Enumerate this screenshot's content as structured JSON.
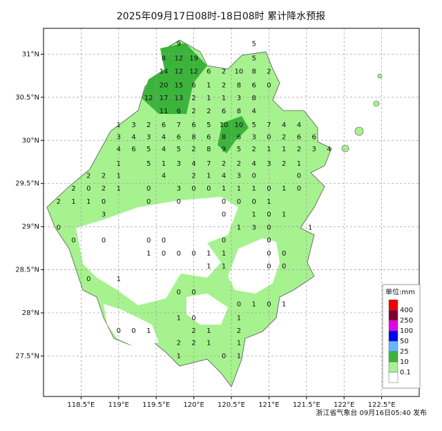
{
  "map": {
    "title": "2025年09月17日08时-18日08时 累计降水预报",
    "footer": "浙江省气象台 09月16日05:40 发布",
    "xlim": [
      118.0,
      123.0
    ],
    "ylim": [
      27.03,
      31.3
    ],
    "xticks": [
      {
        "value": 118.5,
        "label": "118.5°E"
      },
      {
        "value": 119,
        "label": "119°E"
      },
      {
        "value": 119.5,
        "label": "119.5°E"
      },
      {
        "value": 120,
        "label": "120°E"
      },
      {
        "value": 120.5,
        "label": "120.5°E"
      },
      {
        "value": 121,
        "label": "121°E"
      },
      {
        "value": 121.5,
        "label": "121.5°E"
      },
      {
        "value": 122,
        "label": "122°E"
      },
      {
        "value": 122.5,
        "label": "122.5°E"
      }
    ],
    "yticks": [
      {
        "value": 31,
        "label": "31°N"
      },
      {
        "value": 30.5,
        "label": "30.5°N"
      },
      {
        "value": 30,
        "label": "30°N"
      },
      {
        "value": 29.5,
        "label": "29.5°N"
      },
      {
        "value": 29,
        "label": "29°N"
      },
      {
        "value": 28.5,
        "label": "28.5°N"
      },
      {
        "value": 28,
        "label": "28°N"
      },
      {
        "value": 27.5,
        "label": "27.5°N"
      }
    ],
    "legend": {
      "title": "单位:mm",
      "levels": [
        {
          "label": "400",
          "color": "#ee0000"
        },
        {
          "label": "250",
          "color": "#800033"
        },
        {
          "label": "100",
          "color": "#e600e6"
        },
        {
          "label": "50",
          "color": "#0000ee"
        },
        {
          "label": "25",
          "color": "#61b8ff"
        },
        {
          "label": "10",
          "color": "#3cb43c"
        },
        {
          "label": "0.1",
          "color": "#a6f28f"
        },
        {
          "label": null,
          "color": "#ffffff"
        }
      ]
    },
    "stations": [
      {
        "lat": 31.12,
        "lon": [
          119.8,
          120.8
        ],
        "values": [
          9,
          5
        ]
      },
      {
        "lat": 30.95,
        "lon": [
          119.6,
          119.8,
          120.0,
          120.8
        ],
        "values": [
          8,
          12,
          19,
          5
        ]
      },
      {
        "lat": 30.8,
        "lon": [
          119.6,
          119.8,
          120.0,
          120.2,
          120.4,
          120.6,
          120.8,
          121.0
        ],
        "values": [
          14,
          12,
          12,
          6,
          2,
          10,
          8,
          2
        ]
      },
      {
        "lat": 30.64,
        "lon": [
          119.6,
          119.8,
          120.0,
          120.2,
          120.4,
          120.6,
          120.8,
          121.0
        ],
        "values": [
          20,
          15,
          6,
          1,
          2,
          8,
          6,
          0
        ]
      },
      {
        "lat": 30.49,
        "lon": [
          119.4,
          119.6,
          119.8,
          120.0,
          120.2,
          120.4,
          120.6,
          120.8
        ],
        "values": [
          12,
          17,
          13,
          2,
          1,
          1,
          3,
          8
        ]
      },
      {
        "lat": 30.34,
        "lon": [
          119.6,
          119.8,
          120.0,
          120.2,
          120.4,
          120.6,
          120.8
        ],
        "values": [
          11,
          6,
          2,
          2,
          6,
          8,
          4
        ]
      },
      {
        "lat": 30.18,
        "lon": [
          119.0,
          119.2,
          119.4,
          119.6,
          119.8,
          120.0,
          120.2,
          120.4,
          120.6,
          120.8,
          121.0,
          121.2,
          121.4
        ],
        "values": [
          1,
          3,
          2,
          6,
          7,
          6,
          5,
          10,
          10,
          5,
          7,
          4,
          4
        ]
      },
      {
        "lat": 30.04,
        "lon": [
          119.0,
          119.2,
          119.4,
          119.6,
          119.8,
          120.0,
          120.2,
          120.4,
          120.6,
          120.8,
          121.0,
          121.2,
          121.4,
          121.6
        ],
        "values": [
          3,
          4,
          3,
          4,
          6,
          8,
          6,
          8,
          6,
          3,
          0,
          2,
          6,
          6
        ]
      },
      {
        "lat": 29.9,
        "lon": [
          119.0,
          119.2,
          119.4,
          119.6,
          119.8,
          120.0,
          120.2,
          120.4,
          120.6,
          120.8,
          121.0,
          121.2,
          121.4,
          121.6,
          121.8
        ],
        "values": [
          4,
          6,
          5,
          4,
          5,
          2,
          8,
          9,
          5,
          2,
          1,
          1,
          2,
          3,
          4
        ]
      },
      {
        "lat": 29.73,
        "lon": [
          119.0,
          119.4,
          119.6,
          119.8,
          120.0,
          120.2,
          120.4,
          120.6,
          120.8,
          121.0,
          121.2,
          121.4
        ],
        "values": [
          1,
          5,
          1,
          3,
          4,
          7,
          2,
          2,
          4,
          3,
          2,
          1
        ]
      },
      {
        "lat": 29.59,
        "lon": [
          118.6,
          118.8,
          119.0,
          119.6,
          120.0,
          120.2,
          120.4,
          120.6,
          120.8,
          121.4
        ],
        "values": [
          2,
          2,
          1,
          4,
          2,
          1,
          4,
          3,
          0,
          0
        ]
      },
      {
        "lat": 29.44,
        "lon": [
          118.4,
          118.6,
          118.8,
          119.0,
          119.4,
          119.8,
          120.0,
          120.2,
          120.4,
          120.6,
          120.8,
          121.0,
          121.2,
          121.4
        ],
        "values": [
          2,
          0,
          2,
          1,
          0,
          3,
          0,
          0,
          1,
          1,
          1,
          0,
          1,
          0
        ]
      },
      {
        "lat": 29.29,
        "lon": [
          118.2,
          118.4,
          118.6,
          118.8,
          119.4,
          119.8,
          120.4,
          120.6,
          120.8,
          121.0
        ],
        "values": [
          2,
          1,
          1,
          0,
          0,
          0,
          0,
          0,
          0,
          1
        ]
      },
      {
        "lat": 29.14,
        "lon": [
          118.8,
          120.4,
          120.8,
          121.0,
          121.2
        ],
        "values": [
          3,
          0,
          1,
          0,
          1
        ]
      },
      {
        "lat": 28.99,
        "lon": [
          118.2,
          120.6,
          120.8,
          121.0,
          121.55
        ],
        "values": [
          0,
          1,
          3,
          0,
          1
        ]
      },
      {
        "lat": 28.84,
        "lon": [
          118.4,
          118.8,
          119.4,
          119.6,
          120.4,
          121.0
        ],
        "values": [
          0,
          0,
          0,
          0,
          0,
          0
        ]
      },
      {
        "lat": 28.69,
        "lon": [
          119.4,
          119.6,
          119.8,
          120.0,
          120.2,
          120.4,
          121.0,
          121.2
        ],
        "values": [
          1,
          0,
          0,
          0,
          1,
          1,
          0,
          0
        ]
      },
      {
        "lat": 28.54,
        "lon": [
          120.2,
          120.4,
          121.0,
          121.2
        ],
        "values": [
          1,
          1,
          0,
          0
        ]
      },
      {
        "lat": 28.39,
        "lon": [
          118.6,
          119.0
        ],
        "values": [
          0,
          1
        ]
      },
      {
        "lat": 28.24,
        "lon": [
          119.8,
          120.0
        ],
        "values": [
          0,
          0
        ]
      },
      {
        "lat": 28.1,
        "lon": [
          120.6,
          120.8,
          121.0,
          121.2
        ],
        "values": [
          0,
          1,
          0,
          1
        ]
      },
      {
        "lat": 27.94,
        "lon": [
          119.8,
          120.0,
          120.6
        ],
        "values": [
          1,
          0,
          1
        ]
      },
      {
        "lat": 27.79,
        "lon": [
          119.0,
          119.2,
          119.4,
          120.0,
          120.2,
          120.6
        ],
        "values": [
          0,
          0,
          1,
          2,
          1,
          2
        ]
      },
      {
        "lat": 27.65,
        "lon": [
          119.8,
          120.0,
          120.2,
          120.6
        ],
        "values": [
          2,
          2,
          1,
          1
        ]
      },
      {
        "lat": 27.5,
        "lon": [
          119.8,
          120.4,
          120.6
        ],
        "values": [
          1,
          0,
          1
        ]
      }
    ]
  }
}
